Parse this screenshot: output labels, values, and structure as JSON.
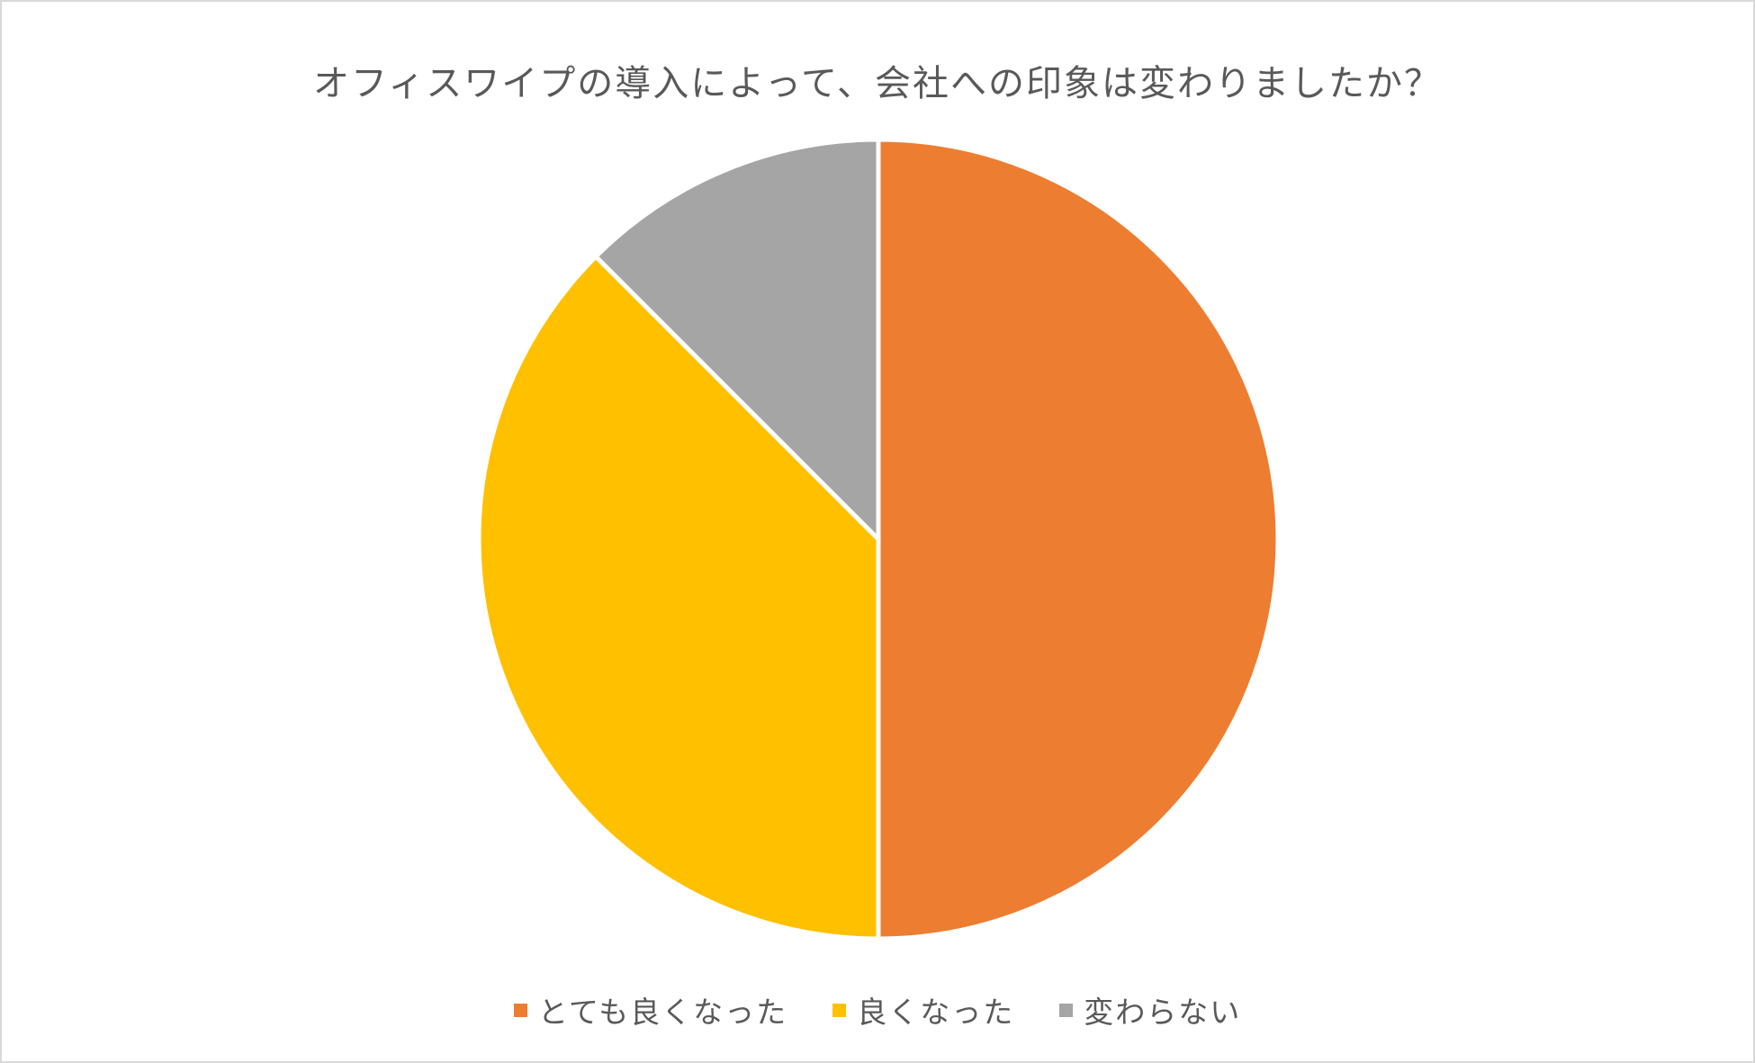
{
  "chart_data": {
    "type": "pie",
    "title": "オフィスワイプの導入によって、会社への印象は変わりましたか？",
    "legend_position": "bottom",
    "slices": [
      {
        "label": "とても良くなった",
        "value": 50,
        "color": "#ED7D31"
      },
      {
        "label": "良くなった",
        "value": 37.5,
        "color": "#FFC000"
      },
      {
        "label": "変わらない",
        "value": 12.5,
        "color": "#A5A5A5"
      }
    ]
  }
}
